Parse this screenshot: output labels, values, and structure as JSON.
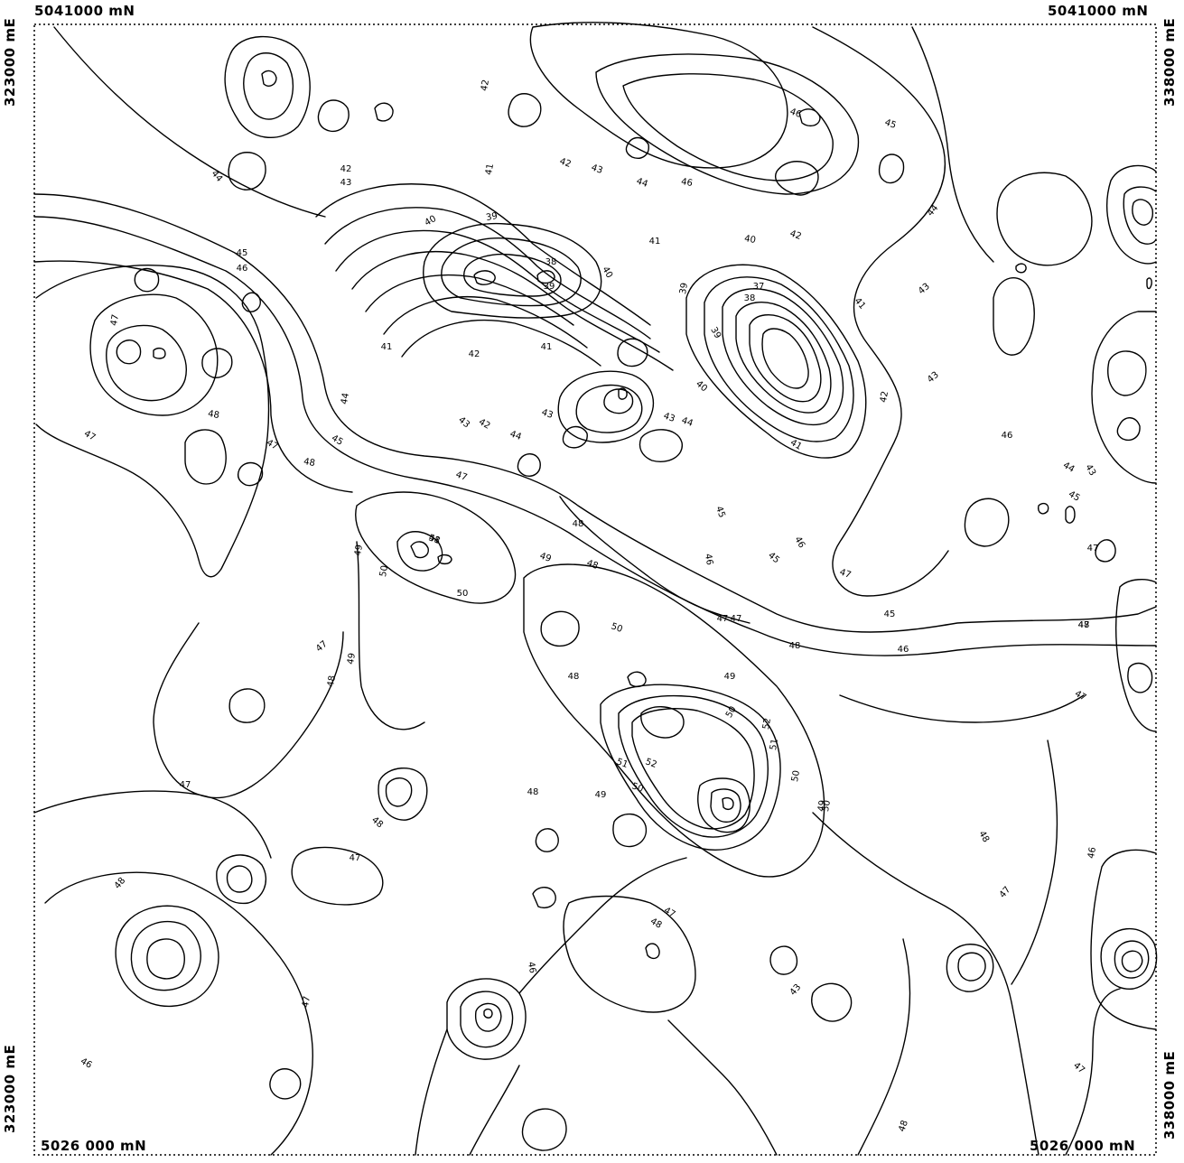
{
  "corners": {
    "top_left": "5041000 mN",
    "top_right": "5041000 mN",
    "bottom_left": "5026 000 mN",
    "bottom_right": "5026 000 mN"
  },
  "sides": {
    "left_top": "323000 mE",
    "left_bottom": "323000 mE",
    "right_top": "338000 mE",
    "right_bottom": "338000 mE"
  },
  "colors": {
    "line": "#000000",
    "background": "#ffffff"
  },
  "contour_labels": [
    {
      "text": "42"
    },
    {
      "text": "41"
    },
    {
      "text": "42"
    },
    {
      "text": "43"
    },
    {
      "text": "44"
    },
    {
      "text": "46"
    },
    {
      "text": "46"
    },
    {
      "text": "45"
    },
    {
      "text": "44"
    },
    {
      "text": "43"
    },
    {
      "text": "42"
    },
    {
      "text": "41"
    },
    {
      "text": "40"
    },
    {
      "text": "39"
    },
    {
      "text": "38"
    },
    {
      "text": "39"
    },
    {
      "text": "40"
    },
    {
      "text": "41"
    },
    {
      "text": "40"
    },
    {
      "text": "42"
    },
    {
      "text": "43"
    },
    {
      "text": "39"
    },
    {
      "text": "37"
    },
    {
      "text": "38"
    },
    {
      "text": "41"
    },
    {
      "text": "39"
    },
    {
      "text": "40"
    },
    {
      "text": "42"
    },
    {
      "text": "43"
    },
    {
      "text": "41"
    },
    {
      "text": "43"
    },
    {
      "text": "44"
    },
    {
      "text": "45"
    },
    {
      "text": "46"
    },
    {
      "text": "47"
    },
    {
      "text": "48"
    },
    {
      "text": "45"
    },
    {
      "text": "46"
    },
    {
      "text": "47"
    },
    {
      "text": "48"
    },
    {
      "text": "44"
    },
    {
      "text": "45"
    },
    {
      "text": "48"
    },
    {
      "text": "47"
    },
    {
      "text": "48"
    },
    {
      "text": "47"
    },
    {
      "text": "47"
    },
    {
      "text": "44"
    },
    {
      "text": "45"
    },
    {
      "text": "46"
    },
    {
      "text": "41"
    },
    {
      "text": "42"
    },
    {
      "text": "43"
    },
    {
      "text": "44"
    },
    {
      "text": "43"
    },
    {
      "text": "42"
    },
    {
      "text": "44"
    },
    {
      "text": "43"
    },
    {
      "text": "45"
    },
    {
      "text": "46"
    },
    {
      "text": "46"
    },
    {
      "text": "45"
    },
    {
      "text": "47"
    },
    {
      "text": "48"
    },
    {
      "text": "47"
    },
    {
      "text": "49"
    },
    {
      "text": "48"
    },
    {
      "text": "51"
    },
    {
      "text": "50"
    },
    {
      "text": "50"
    },
    {
      "text": "49"
    },
    {
      "text": "48"
    },
    {
      "text": "47"
    },
    {
      "text": "48"
    },
    {
      "text": "49"
    },
    {
      "text": "50"
    },
    {
      "text": "47"
    },
    {
      "text": "48"
    },
    {
      "text": "49"
    },
    {
      "text": "50"
    },
    {
      "text": "50"
    },
    {
      "text": "52"
    },
    {
      "text": "51"
    },
    {
      "text": "52"
    },
    {
      "text": "51"
    },
    {
      "text": "50"
    },
    {
      "text": "49"
    },
    {
      "text": "48"
    },
    {
      "text": "50"
    },
    {
      "text": "49"
    },
    {
      "text": "48"
    },
    {
      "text": "47"
    },
    {
      "text": "47"
    },
    {
      "text": "46"
    },
    {
      "text": "47"
    },
    {
      "text": "48"
    },
    {
      "text": "47"
    },
    {
      "text": "48"
    },
    {
      "text": "47"
    },
    {
      "text": "47"
    },
    {
      "text": "48"
    },
    {
      "text": "46"
    },
    {
      "text": "47"
    },
    {
      "text": "43"
    },
    {
      "text": "46"
    },
    {
      "text": "48"
    },
    {
      "text": "47"
    }
  ]
}
